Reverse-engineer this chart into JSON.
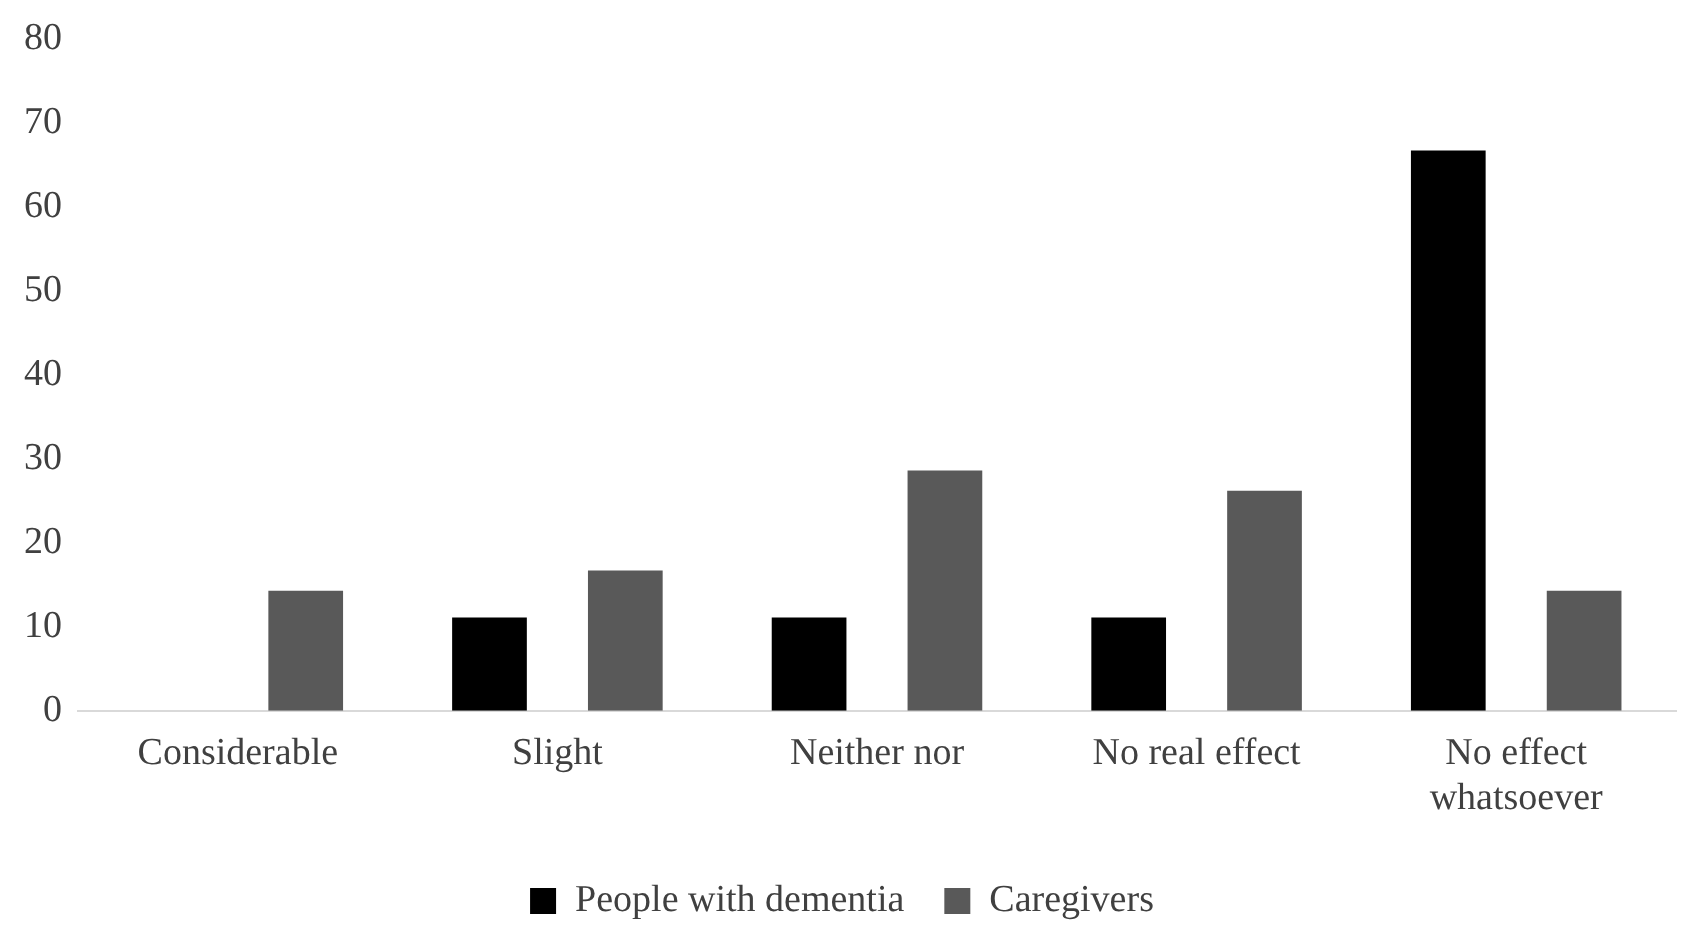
{
  "chart_data": {
    "type": "bar",
    "categories": [
      "Considerable",
      "Slight",
      "Neither nor",
      "No real effect",
      "No effect whatsoever"
    ],
    "series": [
      {
        "name": "People with dementia",
        "color": "#000000",
        "values": [
          0,
          11.1,
          11.1,
          11.1,
          66.7
        ]
      },
      {
        "name": "Caregivers",
        "color": "#595959",
        "values": [
          14.3,
          16.7,
          28.6,
          26.2,
          14.3
        ]
      }
    ],
    "ylim": [
      0,
      80
    ],
    "yticks": [
      0,
      10,
      20,
      30,
      40,
      50,
      60,
      70,
      80
    ],
    "grid": false,
    "legend": "bottom"
  }
}
